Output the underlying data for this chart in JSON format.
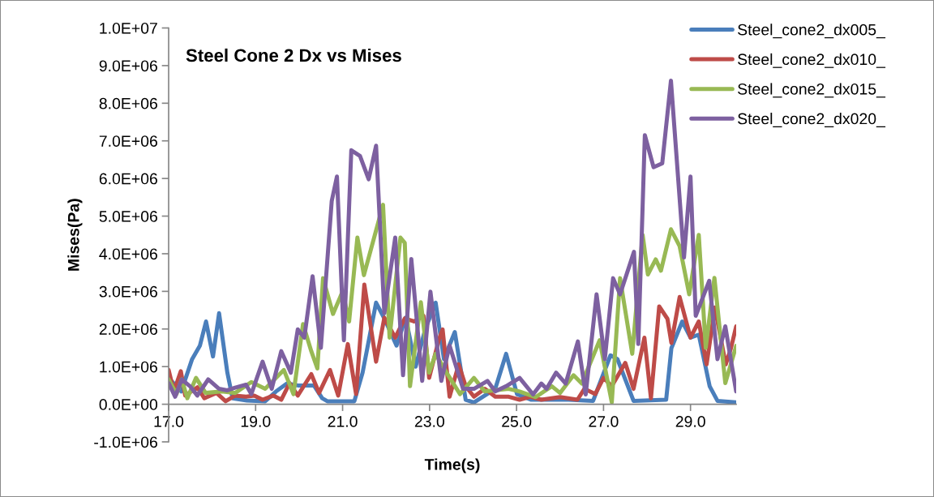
{
  "chart_data": {
    "type": "line",
    "title": "Steel Cone 2 Dx vs Mises",
    "xlabel": "Time(s)",
    "ylabel": "Mises(Pa)",
    "xlim": [
      17,
      30.05
    ],
    "xticks": [
      {
        "value": 17,
        "label": "17.0"
      },
      {
        "value": 19,
        "label": "19.0"
      },
      {
        "value": 21,
        "label": "21.0"
      },
      {
        "value": 23,
        "label": "23.0"
      },
      {
        "value": 25,
        "label": "25.0"
      },
      {
        "value": 27,
        "label": "27.0"
      },
      {
        "value": 29,
        "label": "29.0"
      }
    ],
    "ylim": [
      -1000000.0,
      10000000.0
    ],
    "yticks": [
      {
        "value": -1000000.0,
        "label": "-1.0E+06"
      },
      {
        "value": 0,
        "label": "0.0E+00"
      },
      {
        "value": 1000000.0,
        "label": "1.0E+06"
      },
      {
        "value": 2000000.0,
        "label": "2.0E+06"
      },
      {
        "value": 3000000.0,
        "label": "3.0E+06"
      },
      {
        "value": 4000000.0,
        "label": "4.0E+06"
      },
      {
        "value": 5000000.0,
        "label": "5.0E+06"
      },
      {
        "value": 6000000.0,
        "label": "6.0E+06"
      },
      {
        "value": 7000000.0,
        "label": "7.0E+06"
      },
      {
        "value": 8000000.0,
        "label": "8.0E+06"
      },
      {
        "value": 9000000.0,
        "label": "9.0E+06"
      },
      {
        "value": 10000000.0,
        "label": "1.0E+07"
      }
    ],
    "grid": false,
    "legend": "top right",
    "marker": "none",
    "line_style": "solid",
    "series": [
      {
        "name": "Steel_cone2_dx005_",
        "color": "#4a7ebb",
        "x": [
          17.0,
          17.29,
          17.54,
          17.72,
          17.86,
          18.02,
          18.16,
          18.35,
          18.47,
          18.8,
          19.22,
          19.47,
          19.72,
          19.97,
          20.34,
          20.53,
          20.65,
          21.27,
          21.46,
          21.77,
          21.96,
          22.24,
          22.45,
          22.68,
          22.9,
          23.14,
          23.33,
          23.58,
          23.83,
          24.02,
          24.51,
          24.76,
          25.01,
          25.33,
          25.7,
          26.2,
          26.76,
          27.16,
          27.32,
          27.69,
          28.44,
          28.56,
          28.81,
          29.0,
          29.19,
          29.44,
          29.62,
          30.05
        ],
        "values": [
          700000.0,
          340000.0,
          1200000.0,
          1560000.0,
          2200000.0,
          1270000.0,
          2420000.0,
          840000.0,
          160000.0,
          100000.0,
          80000.0,
          340000.0,
          550000.0,
          500000.0,
          500000.0,
          160000.0,
          80000.0,
          80000.0,
          840000.0,
          2700000.0,
          2280000.0,
          1560000.0,
          2300000.0,
          1000000.0,
          2000000.0,
          2700000.0,
          1200000.0,
          1920000.0,
          120000.0,
          50000.0,
          410000.0,
          1340000.0,
          270000.0,
          120000.0,
          120000.0,
          120000.0,
          90000.0,
          1300000.0,
          1200000.0,
          90000.0,
          120000.0,
          1490000.0,
          2200000.0,
          1770000.0,
          1850000.0,
          480000.0,
          90000.0,
          50000.0
        ]
      },
      {
        "name": "Steel_cone2_dx010_",
        "color": "#be4b48",
        "x": [
          17.0,
          17.12,
          17.28,
          17.38,
          17.66,
          17.82,
          18.1,
          18.31,
          18.53,
          18.78,
          18.97,
          19.16,
          19.41,
          19.59,
          19.78,
          19.97,
          20.28,
          20.46,
          20.71,
          20.9,
          21.12,
          21.31,
          21.5,
          21.77,
          21.96,
          22.21,
          22.43,
          22.65,
          22.86,
          22.99,
          23.21,
          23.3,
          23.46,
          23.67,
          23.83,
          24.02,
          24.27,
          24.51,
          24.82,
          25.07,
          25.32,
          25.57,
          26.0,
          26.4,
          26.56,
          26.81,
          27.0,
          27.19,
          27.5,
          27.69,
          27.94,
          28.09,
          28.28,
          28.47,
          28.56,
          28.75,
          29.0,
          29.19,
          29.37,
          29.56,
          29.81,
          29.93,
          30.05
        ],
        "values": [
          910000.0,
          340000.0,
          880000.0,
          230000.0,
          450000.0,
          160000.0,
          300000.0,
          80000.0,
          230000.0,
          200000.0,
          230000.0,
          120000.0,
          230000.0,
          120000.0,
          560000.0,
          230000.0,
          800000.0,
          300000.0,
          910000.0,
          230000.0,
          1600000.0,
          270000.0,
          3180000.0,
          1130000.0,
          2300000.0,
          1770000.0,
          2280000.0,
          2200000.0,
          2350000.0,
          700000.0,
          1700000.0,
          1990000.0,
          200000.0,
          1060000.0,
          480000.0,
          200000.0,
          410000.0,
          200000.0,
          200000.0,
          120000.0,
          200000.0,
          120000.0,
          190000.0,
          120000.0,
          410000.0,
          270000.0,
          700000.0,
          480000.0,
          1100000.0,
          410000.0,
          1770000.0,
          160000.0,
          2600000.0,
          2270000.0,
          1630000.0,
          2850000.0,
          1770000.0,
          2200000.0,
          1060000.0,
          2570000.0,
          1060000.0,
          1490000.0,
          2070000.0
        ]
      },
      {
        "name": "Steel_cone2_dx015_",
        "color": "#98b954",
        "x": [
          17.0,
          17.18,
          17.3,
          17.43,
          17.63,
          17.85,
          18.22,
          18.53,
          18.9,
          19.22,
          19.65,
          19.87,
          20.09,
          20.28,
          20.42,
          20.55,
          20.78,
          21.0,
          21.15,
          21.34,
          21.49,
          21.93,
          22.08,
          22.33,
          22.43,
          22.55,
          22.8,
          22.99,
          23.14,
          23.39,
          23.7,
          24.02,
          24.27,
          24.82,
          25.07,
          25.44,
          25.81,
          26.0,
          26.31,
          26.5,
          26.91,
          27.19,
          27.38,
          27.66,
          27.9,
          28.02,
          28.2,
          28.32,
          28.55,
          28.75,
          28.97,
          29.19,
          29.35,
          29.55,
          29.8,
          30.05
        ],
        "values": [
          660000.0,
          270000.0,
          660000.0,
          160000.0,
          700000.0,
          300000.0,
          340000.0,
          300000.0,
          590000.0,
          410000.0,
          910000.0,
          270000.0,
          2130000.0,
          1410000.0,
          950000.0,
          3350000.0,
          2400000.0,
          3000000.0,
          2200000.0,
          4430000.0,
          3430000.0,
          5300000.0,
          1770000.0,
          4430000.0,
          4290000.0,
          480000.0,
          2710000.0,
          840000.0,
          1340000.0,
          840000.0,
          270000.0,
          700000.0,
          340000.0,
          410000.0,
          340000.0,
          190000.0,
          480000.0,
          300000.0,
          770000.0,
          550000.0,
          1700000.0,
          50000.0,
          3350000.0,
          1340000.0,
          4500000.0,
          3450000.0,
          3850000.0,
          3550000.0,
          4650000.0,
          4200000.0,
          2920000.0,
          4500000.0,
          1500000.0,
          3360000.0,
          560000.0,
          1550000.0
        ]
      },
      {
        "name": "Steel_cone2_dx020_",
        "color": "#7d60a0",
        "x": [
          17.0,
          17.15,
          17.3,
          17.49,
          17.66,
          17.91,
          18.16,
          18.35,
          18.53,
          18.78,
          18.9,
          19.16,
          19.37,
          19.59,
          19.81,
          19.97,
          20.12,
          20.31,
          20.5,
          20.75,
          20.87,
          21.03,
          21.2,
          21.4,
          21.6,
          21.77,
          21.96,
          22.21,
          22.39,
          22.58,
          22.83,
          23.02,
          23.27,
          23.46,
          23.77,
          24.02,
          24.33,
          24.51,
          24.76,
          25.07,
          25.38,
          25.57,
          25.69,
          25.91,
          26.13,
          26.41,
          26.59,
          26.84,
          27.03,
          27.22,
          27.38,
          27.7,
          27.8,
          27.95,
          28.15,
          28.35,
          28.55,
          28.85,
          29.0,
          29.12,
          29.43,
          29.62,
          29.8,
          30.05
        ],
        "values": [
          560000.0,
          200000.0,
          660000.0,
          480000.0,
          230000.0,
          660000.0,
          410000.0,
          370000.0,
          440000.0,
          520000.0,
          270000.0,
          1130000.0,
          410000.0,
          1410000.0,
          840000.0,
          1990000.0,
          1770000.0,
          3400000.0,
          1500000.0,
          5400000.0,
          6050000.0,
          1700000.0,
          6750000.0,
          6600000.0,
          5980000.0,
          6870000.0,
          2420000.0,
          4430000.0,
          770000.0,
          3860000.0,
          620000.0,
          2990000.0,
          620000.0,
          1560000.0,
          410000.0,
          410000.0,
          620000.0,
          340000.0,
          480000.0,
          700000.0,
          260000.0,
          550000.0,
          410000.0,
          840000.0,
          550000.0,
          1670000.0,
          260000.0,
          2920000.0,
          1200000.0,
          3350000.0,
          2920000.0,
          4050000.0,
          1600000.0,
          7150000.0,
          6300000.0,
          6400000.0,
          8600000.0,
          3900000.0,
          6050000.0,
          2350000.0,
          3280000.0,
          1200000.0,
          2070000.0,
          340000.0
        ]
      }
    ]
  }
}
